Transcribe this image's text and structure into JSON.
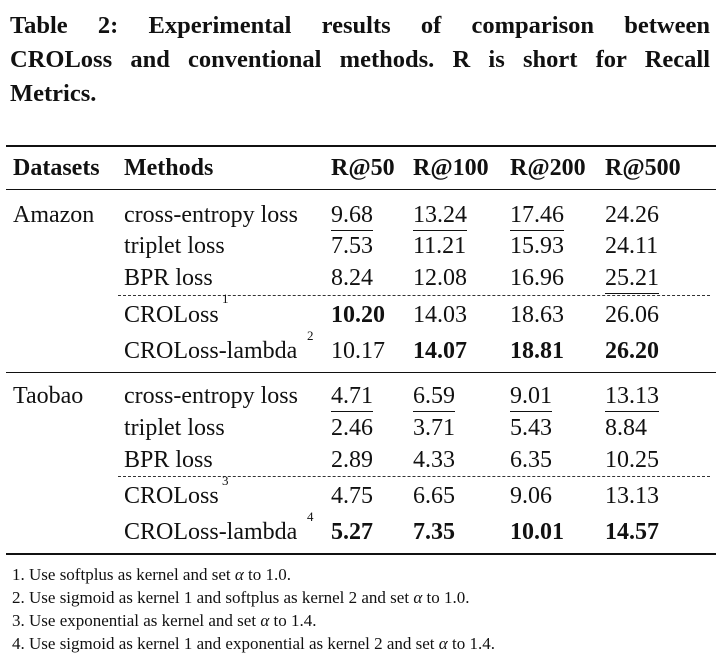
{
  "caption": {
    "line1": "Table 2: Experimental results of comparison between",
    "line2": "CROLoss and conventional methods. R is short for Recall",
    "line3": "Metrics."
  },
  "header": {
    "datasets": "Datasets",
    "methods": "Methods",
    "r50": "R@50",
    "r100": "R@100",
    "r200": "R@200",
    "r500": "R@500"
  },
  "groups": [
    {
      "dataset": "Amazon",
      "rows": [
        {
          "method": "cross-entropy loss",
          "sup": "",
          "values": [
            "9.68",
            "13.24",
            "17.46",
            "24.26"
          ]
        },
        {
          "method": "triplet loss",
          "sup": "",
          "values": [
            "7.53",
            "11.21",
            "15.93",
            "24.11"
          ]
        },
        {
          "method": "BPR loss",
          "sup": "",
          "values": [
            "8.24",
            "12.08",
            "16.96",
            "25.21"
          ]
        },
        {
          "method": "CROLoss",
          "sup": "1",
          "values": [
            "10.20",
            "14.03",
            "18.63",
            "26.06"
          ]
        },
        {
          "method": "CROLoss-lambda",
          "sup": "2",
          "values": [
            "10.17",
            "14.07",
            "18.81",
            "26.20"
          ]
        }
      ]
    },
    {
      "dataset": "Taobao",
      "rows": [
        {
          "method": "cross-entropy loss",
          "sup": "",
          "values": [
            "4.71",
            "6.59",
            "9.01",
            "13.13"
          ]
        },
        {
          "method": "triplet loss",
          "sup": "",
          "values": [
            "2.46",
            "3.71",
            "5.43",
            "8.84"
          ]
        },
        {
          "method": "BPR loss",
          "sup": "",
          "values": [
            "2.89",
            "4.33",
            "6.35",
            "10.25"
          ]
        },
        {
          "method": "CROLoss",
          "sup": "3",
          "values": [
            "4.75",
            "6.65",
            "9.06",
            "13.13"
          ]
        },
        {
          "method": "CROLoss-lambda",
          "sup": "4",
          "values": [
            "5.27",
            "7.35",
            "10.01",
            "14.57"
          ]
        }
      ]
    }
  ],
  "footnotes": [
    {
      "pre": "1. Use softplus as kernel and set ",
      "sym": "α",
      "post": " to 1.0."
    },
    {
      "pre": "2. Use sigmoid as kernel 1 and softplus as kernel 2 and set ",
      "sym": "α",
      "post": " to 1.0."
    },
    {
      "pre": "3. Use exponential as kernel and set ",
      "sym": "α",
      "post": " to 1.4."
    },
    {
      "pre": "4. Use sigmoid as kernel 1 and exponential as kernel 2 and set ",
      "sym": "α",
      "post": " to 1.4."
    }
  ]
}
